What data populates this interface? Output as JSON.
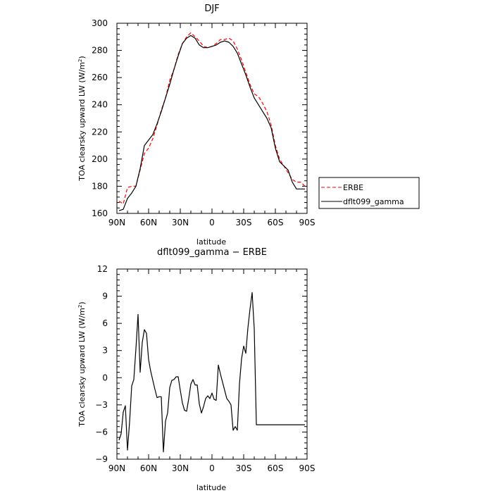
{
  "chart_data": [
    {
      "type": "line",
      "title": "DJF",
      "xlabel": "latitude",
      "ylabel": "TOA clearsky upward LW (W/m²)",
      "ylabel_parts": {
        "main": "TOA clearsky upward LW (W/m",
        "sup": "2",
        "end": ")"
      },
      "ylim": [
        160,
        300
      ],
      "y_ticks": [
        "160",
        "180",
        "200",
        "220",
        "240",
        "260",
        "280",
        "300"
      ],
      "xlim": [
        90,
        -90
      ],
      "x_tick_values": [
        90,
        60,
        30,
        0,
        -30,
        -60,
        -90
      ],
      "x_tick_labels": [
        "90N",
        "60N",
        "30N",
        "0",
        "30S",
        "60S",
        "90S"
      ],
      "legend_position": "right",
      "series": [
        {
          "name": "ERBE",
          "color": "#ff0000",
          "dash": "dashed",
          "x": [
            88,
            84,
            80,
            76,
            72,
            68,
            64,
            60,
            56,
            52,
            48,
            44,
            40,
            36,
            32,
            28,
            24,
            20,
            16,
            12,
            8,
            4,
            0,
            -4,
            -8,
            -12,
            -16,
            -20,
            -24,
            -28,
            -32,
            -36,
            -40,
            -44,
            -48,
            -52,
            -56,
            -60,
            -64,
            -68,
            -72,
            -76,
            -80,
            -84,
            -88
          ],
          "y": [
            169,
            167,
            179,
            180,
            180,
            192,
            204,
            208,
            215,
            225,
            236,
            245,
            258,
            266,
            277,
            285,
            290,
            293,
            290,
            287,
            283,
            282,
            283,
            285,
            288,
            288,
            289,
            287,
            281,
            273,
            264,
            255,
            248,
            246,
            241,
            235,
            225,
            210,
            200,
            195,
            190,
            185,
            183,
            183,
            180
          ]
        },
        {
          "name": "dflt099_gamma",
          "color": "#000000",
          "dash": "solid",
          "x": [
            88,
            84,
            80,
            76,
            72,
            68,
            64,
            60,
            56,
            52,
            48,
            44,
            40,
            36,
            32,
            28,
            24,
            20,
            16,
            12,
            8,
            4,
            0,
            -4,
            -8,
            -12,
            -16,
            -20,
            -24,
            -28,
            -32,
            -36,
            -40,
            -44,
            -48,
            -52,
            -56,
            -60,
            -64,
            -68,
            -72,
            -76,
            -80,
            -84,
            -88
          ],
          "y": [
            162,
            163,
            171,
            175,
            180,
            193,
            210,
            214,
            218,
            226,
            235,
            245,
            255,
            266,
            276,
            285,
            289,
            291,
            289,
            284,
            282,
            282,
            283,
            284,
            286,
            287,
            286,
            283,
            278,
            270,
            262,
            253,
            245,
            240,
            235,
            230,
            223,
            208,
            198,
            195,
            192,
            183,
            178,
            178,
            178
          ]
        }
      ]
    },
    {
      "type": "line",
      "title": "dflt099_gamma − ERBE",
      "xlabel": "latitude",
      "ylabel": "TOA clearsky upward LW (W/m²)",
      "ylabel_parts": {
        "main": "TOA clearsky upward LW (W/m",
        "sup": "2",
        "end": ")"
      },
      "ylim": [
        -9,
        12
      ],
      "y_ticks": [
        "−9",
        "−6",
        "−3",
        "0",
        "3",
        "6",
        "9",
        "12"
      ],
      "xlim": [
        90,
        -90
      ],
      "x_tick_values": [
        90,
        60,
        30,
        0,
        -30,
        -60,
        -90
      ],
      "x_tick_labels": [
        "90N",
        "60N",
        "30N",
        "0",
        "30S",
        "60S",
        "90S"
      ],
      "series": [
        {
          "name": "",
          "color": "#000000",
          "dash": "solid",
          "x": [
            88,
            86,
            84,
            82,
            80,
            78,
            76,
            74,
            72,
            70,
            68,
            66,
            64,
            62,
            60,
            58,
            56,
            54,
            52,
            50,
            48,
            46,
            44,
            42,
            40,
            38,
            36,
            34,
            32,
            30,
            28,
            26,
            24,
            22,
            20,
            18,
            16,
            14,
            12,
            10,
            8,
            6,
            4,
            2,
            0,
            -2,
            -4,
            -6,
            -8,
            -10,
            -12,
            -14,
            -16,
            -18,
            -20,
            -22,
            -24,
            -26,
            -28,
            -30,
            -32,
            -34,
            -36,
            -38,
            -40,
            -42,
            -44,
            -46,
            -48,
            -50,
            -52,
            -54,
            -56,
            -58,
            -60,
            -62,
            -64,
            -66,
            -68,
            -70,
            -72,
            -74,
            -76,
            -78,
            -80,
            -82,
            -84,
            -86,
            -88
          ],
          "y": [
            -6.9,
            -6.2,
            -3.8,
            -3.1,
            -8.0,
            -4.9,
            -0.9,
            -0.2,
            3.2,
            7.0,
            0.6,
            3.9,
            5.3,
            4.9,
            2.0,
            0.7,
            -0.3,
            -1.3,
            -2.2,
            -2.1,
            -2.1,
            -8.2,
            -4.8,
            -3.9,
            -1.1,
            -0.3,
            -0.2,
            0.1,
            0.1,
            -1.4,
            -2.8,
            -3.6,
            -3.7,
            -2.3,
            -0.7,
            -0.2,
            -0.8,
            -0.8,
            -2.9,
            -3.9,
            -3.2,
            -2.3,
            -2.0,
            -2.3,
            -1.7,
            -2.4,
            -2.5,
            1.4,
            0.4,
            -0.5,
            -1.4,
            -2.3,
            -2.6,
            -3.0,
            -5.8,
            -5.4,
            -5.8,
            -0.7,
            2.1,
            3.5,
            2.7,
            5.5,
            7.6,
            9.4,
            5.4,
            -5.2,
            -5.2,
            -5.2,
            -5.2,
            -5.2,
            -5.2,
            -5.2,
            -5.2,
            -5.2,
            -5.2,
            -5.2,
            -5.2,
            -5.2,
            -5.2,
            -5.2,
            -5.2,
            -5.2,
            -5.2,
            -5.2,
            -5.2,
            -5.2,
            -5.2,
            -5.2,
            -5.2
          ]
        }
      ]
    }
  ]
}
